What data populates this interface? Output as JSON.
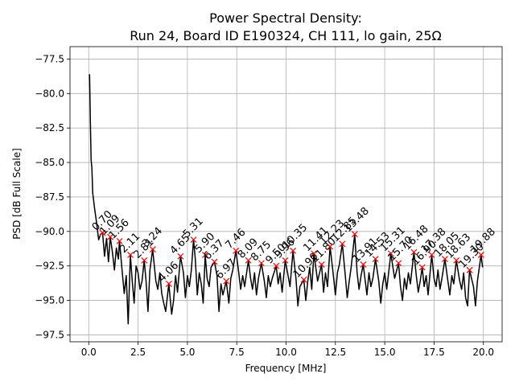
{
  "chart_data": {
    "type": "line",
    "title": "Power Spectral Density:",
    "subtitle": "Run 24, Board ID E190324, CH 111, lo gain, 25Ω",
    "xlabel": "Frequency [MHz]",
    "ylabel": "PSD [dB Full Scale]",
    "xlim": [
      -0.95,
      20.95
    ],
    "ylim": [
      -98.0,
      -76.6
    ],
    "xticks": [
      {
        "value": 0,
        "label": "0.0"
      },
      {
        "value": 2.5,
        "label": "2.5"
      },
      {
        "value": 5,
        "label": "5.0"
      },
      {
        "value": 7.5,
        "label": "7.5"
      },
      {
        "value": 10,
        "label": "10.0"
      },
      {
        "value": 12.5,
        "label": "12.5"
      },
      {
        "value": 15,
        "label": "15.0"
      },
      {
        "value": 17.5,
        "label": "17.5"
      },
      {
        "value": 20,
        "label": "20.0"
      }
    ],
    "yticks": [
      {
        "value": -97.5,
        "label": "−97.5"
      },
      {
        "value": -95,
        "label": "−95.0"
      },
      {
        "value": -92.5,
        "label": "−92.5"
      },
      {
        "value": -90,
        "label": "−90.0"
      },
      {
        "value": -87.5,
        "label": "−87.5"
      },
      {
        "value": -85,
        "label": "−85.0"
      },
      {
        "value": -82.5,
        "label": "−82.5"
      },
      {
        "value": -80,
        "label": "−80.0"
      },
      {
        "value": -77.5,
        "label": "−77.5"
      }
    ],
    "grid": true,
    "x": [
      0.04,
      0.08,
      0.12,
      0.16,
      0.2,
      0.3,
      0.4,
      0.5,
      0.6,
      0.7,
      0.8,
      0.9,
      1.0,
      1.09,
      1.2,
      1.3,
      1.4,
      1.5,
      1.56,
      1.7,
      1.8,
      1.9,
      2.0,
      2.11,
      2.2,
      2.3,
      2.4,
      2.5,
      2.6,
      2.7,
      2.81,
      2.9,
      3.0,
      3.1,
      3.24,
      3.4,
      3.5,
      3.6,
      3.7,
      3.8,
      3.9,
      4.06,
      4.2,
      4.3,
      4.4,
      4.5,
      4.65,
      4.8,
      4.9,
      5.0,
      5.1,
      5.2,
      5.31,
      5.4,
      5.5,
      5.6,
      5.7,
      5.8,
      5.9,
      6.0,
      6.1,
      6.2,
      6.37,
      6.5,
      6.6,
      6.7,
      6.8,
      6.97,
      7.1,
      7.2,
      7.3,
      7.46,
      7.6,
      7.7,
      7.8,
      7.9,
      8.09,
      8.2,
      8.3,
      8.4,
      8.5,
      8.6,
      8.75,
      8.9,
      9.0,
      9.1,
      9.2,
      9.3,
      9.5,
      9.6,
      9.7,
      9.8,
      9.96,
      10.1,
      10.2,
      10.35,
      10.5,
      10.6,
      10.7,
      10.9,
      11.0,
      11.1,
      11.2,
      11.3,
      11.41,
      11.6,
      11.8,
      11.9,
      12.0,
      12.1,
      12.23,
      12.4,
      12.5,
      12.6,
      12.7,
      12.85,
      13.0,
      13.1,
      13.2,
      13.3,
      13.48,
      13.6,
      13.7,
      13.8,
      13.91,
      14.1,
      14.2,
      14.3,
      14.4,
      14.53,
      14.7,
      14.8,
      14.9,
      15.0,
      15.1,
      15.31,
      15.5,
      15.7,
      15.8,
      15.9,
      16.0,
      16.1,
      16.2,
      16.3,
      16.48,
      16.6,
      16.7,
      16.8,
      16.9,
      17.0,
      17.1,
      17.2,
      17.38,
      17.5,
      17.6,
      17.7,
      17.8,
      17.9,
      18.05,
      18.2,
      18.3,
      18.4,
      18.5,
      18.63,
      18.8,
      18.9,
      19.0,
      19.1,
      19.2,
      19.3,
      19.5,
      19.6,
      19.7,
      19.88,
      19.96
    ],
    "series": [
      {
        "color": "#000000",
        "values": [
          -78.6,
          -82,
          -84.8,
          -85.4,
          -87.2,
          -88.4,
          -89.4,
          -90.6,
          -90.2,
          -90.1,
          -91.8,
          -90.5,
          -92.2,
          -90.4,
          -91.5,
          -92.8,
          -91.2,
          -92.0,
          -90.7,
          -93.0,
          -94.5,
          -93.2,
          -96.7,
          -91.7,
          -93.5,
          -95.2,
          -92.5,
          -93.0,
          -94.2,
          -93.6,
          -92.1,
          -93.5,
          -95.8,
          -92.8,
          -91.3,
          -93.6,
          -94.2,
          -93.0,
          -94.5,
          -95.2,
          -95.8,
          -93.8,
          -96.0,
          -95.0,
          -93.2,
          -94.4,
          -91.8,
          -93.0,
          -94.8,
          -93.2,
          -94.0,
          -92.8,
          -90.6,
          -92.0,
          -94.6,
          -93.0,
          -93.8,
          -95.2,
          -91.7,
          -93.4,
          -94.0,
          -92.6,
          -92.2,
          -93.2,
          -95.8,
          -93.8,
          -94.6,
          -93.6,
          -95.2,
          -93.4,
          -92.8,
          -91.4,
          -93.0,
          -94.2,
          -93.2,
          -94.0,
          -92.1,
          -93.4,
          -94.2,
          -93.0,
          -94.6,
          -93.4,
          -92.3,
          -93.6,
          -94.8,
          -93.2,
          -94.0,
          -93.4,
          -92.5,
          -93.8,
          -93.0,
          -94.4,
          -92.1,
          -93.2,
          -94.0,
          -91.4,
          -93.4,
          -95.4,
          -94.0,
          -93.5,
          -95.0,
          -93.6,
          -92.6,
          -94.2,
          -91.6,
          -93.6,
          -92.4,
          -94.4,
          -93.0,
          -94.0,
          -91.1,
          -93.2,
          -94.6,
          -93.0,
          -92.4,
          -90.9,
          -93.2,
          -94.8,
          -93.6,
          -92.6,
          -90.2,
          -93.0,
          -94.2,
          -93.2,
          -92.4,
          -94.6,
          -93.0,
          -94.0,
          -93.4,
          -92.0,
          -93.6,
          -95.2,
          -93.8,
          -93.0,
          -94.2,
          -91.6,
          -93.4,
          -92.3,
          -94.0,
          -95.0,
          -93.4,
          -94.2,
          -93.0,
          -93.8,
          -91.5,
          -93.2,
          -94.4,
          -93.6,
          -92.6,
          -94.0,
          -93.2,
          -94.6,
          -91.7,
          -93.4,
          -94.0,
          -92.8,
          -94.2,
          -93.4,
          -92.0,
          -93.6,
          -94.6,
          -93.2,
          -93.8,
          -92.1,
          -93.6,
          -94.2,
          -93.0,
          -94.8,
          -95.4,
          -92.8,
          -94.0,
          -95.4,
          -93.6,
          -91.7,
          -92.6
        ]
      }
    ],
    "peaks": {
      "color": "#ff0000",
      "x": [
        0.7,
        1.09,
        1.56,
        2.11,
        2.81,
        3.24,
        4.06,
        4.65,
        5.31,
        5.9,
        6.37,
        6.97,
        7.46,
        8.09,
        8.75,
        9.5,
        9.96,
        10.35,
        10.9,
        11.41,
        11.8,
        12.23,
        12.85,
        13.48,
        13.91,
        14.53,
        15.31,
        15.7,
        16.48,
        16.9,
        17.38,
        18.05,
        18.63,
        19.3,
        19.88
      ],
      "values": [
        -90.1,
        -90.4,
        -90.7,
        -91.7,
        -92.1,
        -91.3,
        -93.8,
        -91.8,
        -90.6,
        -91.7,
        -92.2,
        -93.6,
        -91.4,
        -92.1,
        -92.3,
        -92.5,
        -92.1,
        -91.4,
        -93.5,
        -91.6,
        -92.4,
        -91.1,
        -90.9,
        -90.2,
        -92.4,
        -92.0,
        -91.6,
        -92.3,
        -91.5,
        -92.6,
        -91.7,
        -92.0,
        -92.1,
        -92.8,
        -91.7
      ],
      "labels": [
        "0.70",
        "1.09",
        "1.56",
        "2.11",
        "2.81",
        "3.24",
        "4.06",
        "4.65",
        "5.31",
        "5.90",
        "6.37",
        "6.97",
        "7.46",
        "8.09",
        "8.75",
        "9.50",
        "9.96",
        "10.35",
        "10.90",
        "11.41",
        "11.80",
        "12.23",
        "12.85",
        "13.48",
        "13.91",
        "14.53",
        "15.31",
        "15.70",
        "16.48",
        "16.90",
        "17.38",
        "18.05",
        "18.63",
        "19.30",
        "19.88"
      ]
    }
  }
}
